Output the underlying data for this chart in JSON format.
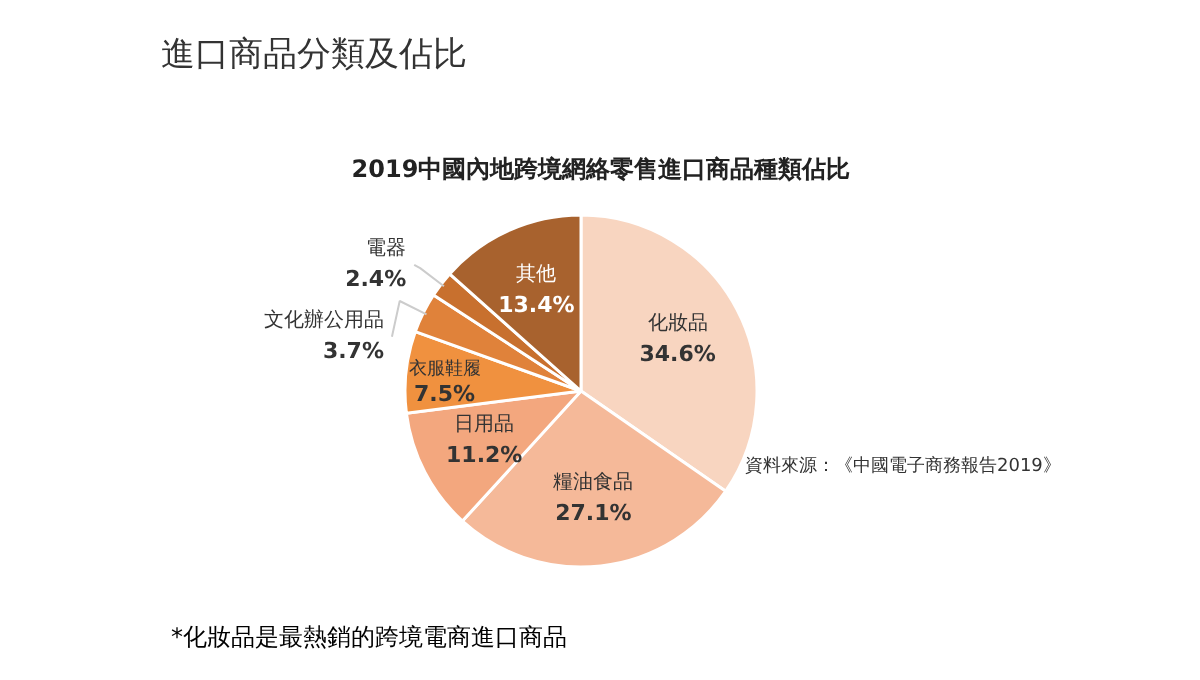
{
  "chart_data": {
    "type": "pie",
    "title": "進口商品分類及佔比",
    "subtitle": "2019中國內地跨境網絡零售進口商品種類佔比",
    "categories": [
      "化妝品",
      "糧油食品",
      "日用品",
      "衣服鞋履",
      "文化辦公用品",
      "電器",
      "其他"
    ],
    "values": [
      34.6,
      27.1,
      11.2,
      7.5,
      3.7,
      2.4,
      13.4
    ],
    "value_labels": [
      "34.6%",
      "27.1%",
      "11.2%",
      "7.5%",
      "3.7%",
      "2.4%",
      "13.4%"
    ],
    "colors": [
      "#f8d5c0",
      "#f5b999",
      "#f3a77e",
      "#f0913f",
      "#e0823a",
      "#c8702e",
      "#a8622e"
    ],
    "annotations": [
      "資料來源：《中國電子商務報告2019》",
      "*化妝品是最熱銷的跨境電商進口商品"
    ]
  }
}
